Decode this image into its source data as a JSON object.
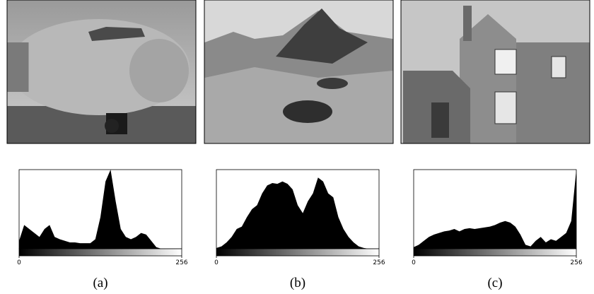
{
  "chart_data": [
    {
      "type": "area",
      "caption": "(a)",
      "color": "#000000",
      "x": [
        0,
        8,
        16,
        24,
        32,
        40,
        48,
        56,
        64,
        72,
        80,
        88,
        96,
        104,
        112,
        120,
        128,
        136,
        144,
        152,
        160,
        168,
        176,
        184,
        192,
        200,
        208,
        216,
        224,
        232,
        240,
        248,
        256
      ],
      "values": [
        10,
        30,
        25,
        20,
        15,
        25,
        30,
        15,
        12,
        10,
        8,
        8,
        7,
        7,
        7,
        12,
        40,
        85,
        100,
        60,
        25,
        15,
        12,
        15,
        20,
        18,
        10,
        2,
        0,
        0,
        0,
        0,
        0
      ],
      "xlim": [
        0,
        256
      ],
      "xticks": [
        0,
        256
      ],
      "ylim": [
        0,
        100
      ]
    },
    {
      "type": "area",
      "caption": "(b)",
      "color": "#000000",
      "x": [
        0,
        8,
        16,
        24,
        32,
        40,
        48,
        56,
        64,
        72,
        80,
        88,
        96,
        104,
        112,
        120,
        128,
        136,
        144,
        152,
        160,
        168,
        176,
        184,
        192,
        200,
        208,
        216,
        224,
        232,
        240,
        248,
        256
      ],
      "values": [
        1,
        3,
        8,
        15,
        25,
        28,
        40,
        50,
        55,
        70,
        80,
        83,
        82,
        85,
        82,
        75,
        55,
        45,
        60,
        70,
        90,
        85,
        70,
        65,
        40,
        25,
        15,
        8,
        3,
        1,
        0,
        0,
        0
      ],
      "xlim": [
        0,
        256
      ],
      "xticks": [
        0,
        256
      ],
      "ylim": [
        0,
        100
      ]
    },
    {
      "type": "area",
      "caption": "(c)",
      "color": "#000000",
      "x": [
        0,
        8,
        16,
        24,
        32,
        40,
        48,
        56,
        64,
        72,
        80,
        88,
        96,
        104,
        112,
        120,
        128,
        136,
        144,
        152,
        160,
        168,
        176,
        184,
        192,
        200,
        208,
        216,
        224,
        232,
        240,
        248,
        256
      ],
      "values": [
        2,
        5,
        10,
        15,
        18,
        20,
        22,
        23,
        25,
        22,
        25,
        26,
        25,
        26,
        27,
        28,
        30,
        33,
        35,
        33,
        28,
        18,
        5,
        3,
        10,
        15,
        8,
        12,
        10,
        15,
        20,
        35,
        100
      ],
      "xlim": [
        0,
        256
      ],
      "xticks": [
        0,
        256
      ],
      "ylim": [
        0,
        100
      ]
    }
  ]
}
